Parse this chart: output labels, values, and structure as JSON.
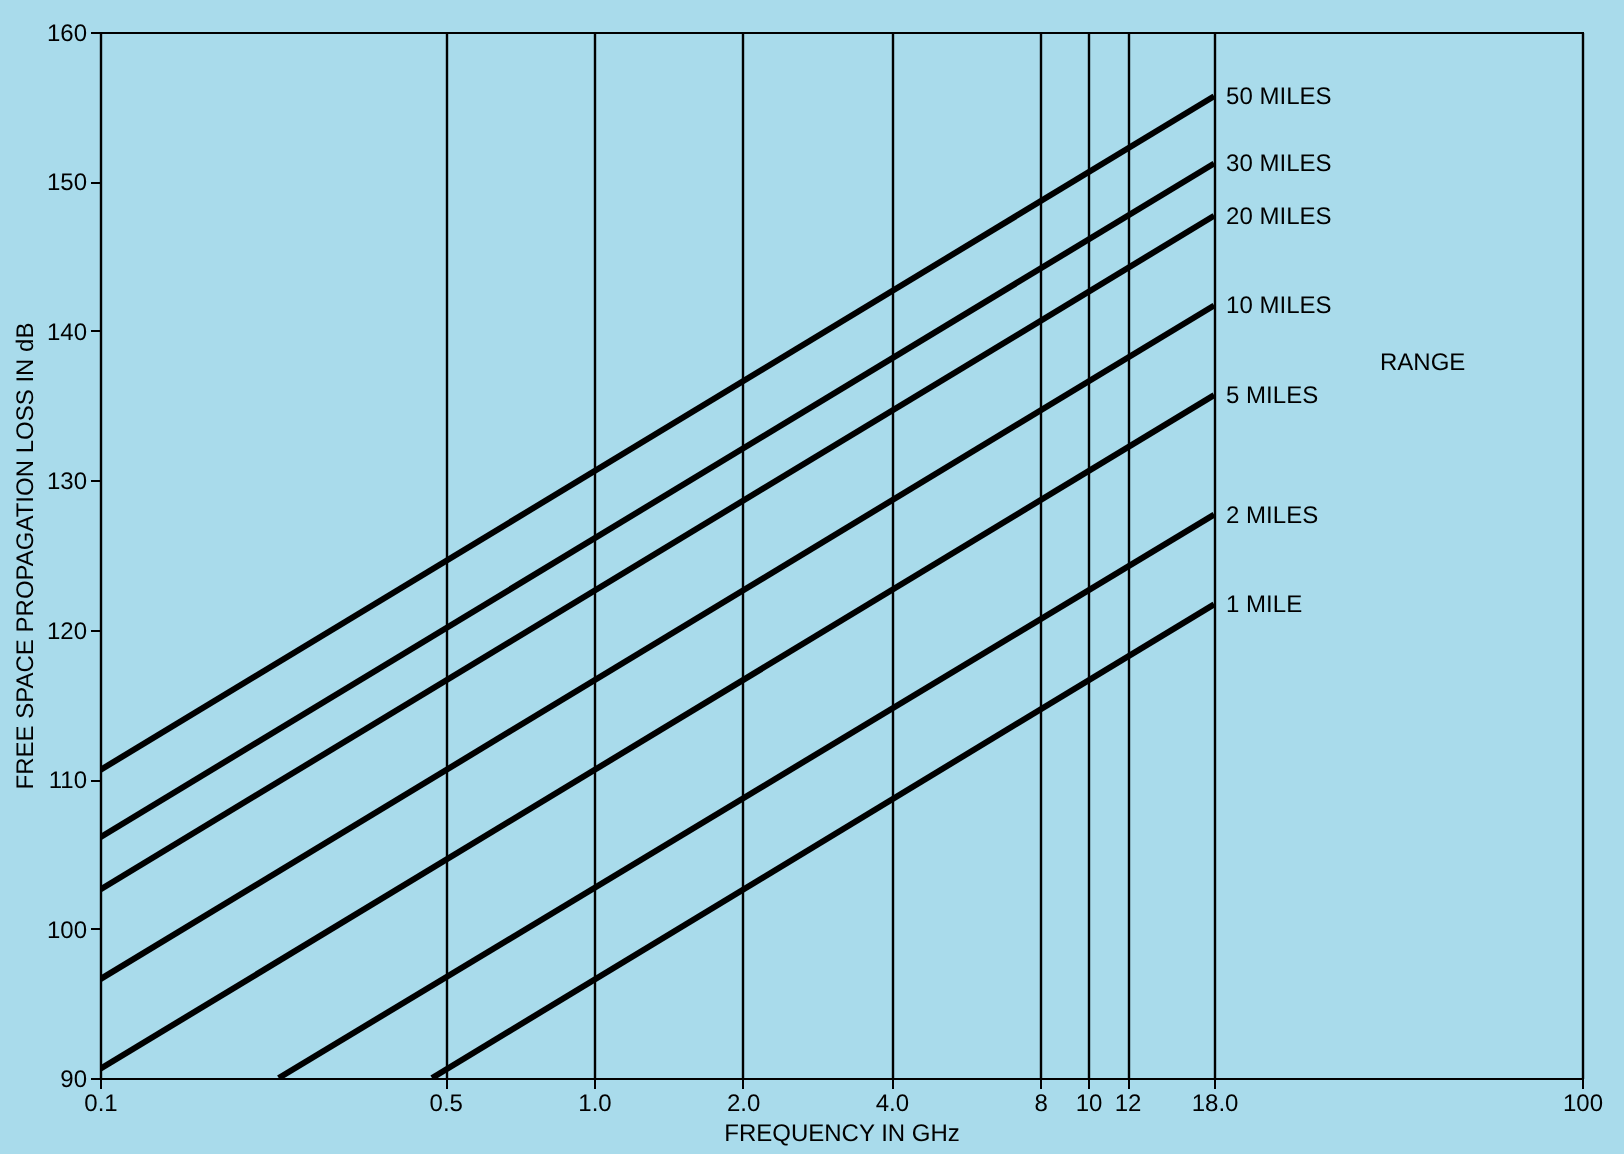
{
  "chart_data": {
    "type": "line",
    "xlabel": "FREQUENCY IN GHz",
    "ylabel": "FREE SPACE PROPAGATION LOSS IN dB",
    "log": "x",
    "xlim": [
      0.1,
      100
    ],
    "xticks": [
      0.1,
      0.5,
      {
        "value": 1,
        "label": "1.0"
      },
      {
        "value": 2,
        "label": "2.0"
      },
      {
        "value": 4,
        "label": "4.0"
      },
      8,
      10,
      12,
      {
        "value": 18,
        "label": "18.0"
      },
      100
    ],
    "ylim": [
      90,
      160
    ],
    "yticks": [
      90,
      100,
      110,
      120,
      130,
      140,
      150,
      160
    ],
    "grid": "x",
    "legend": false,
    "marker": "none",
    "line_style": "solid",
    "series": [
      {
        "name": "50 MILES",
        "color": "#000000",
        "x": [
          0.1,
          18
        ],
        "values": [
          110.6,
          155.7
        ]
      },
      {
        "name": "30 MILES",
        "color": "#000000",
        "x": [
          0.1,
          18
        ],
        "values": [
          106.1,
          151.2
        ]
      },
      {
        "name": "20 MILES",
        "color": "#000000",
        "x": [
          0.1,
          18
        ],
        "values": [
          102.6,
          147.7
        ]
      },
      {
        "name": "10 MILES",
        "color": "#000000",
        "x": [
          0.1,
          18
        ],
        "values": [
          96.6,
          141.7
        ]
      },
      {
        "name": "5 MILES",
        "color": "#000000",
        "x": [
          0.1,
          18
        ],
        "values": [
          90.6,
          135.7
        ]
      },
      {
        "name": "2 MILES",
        "color": "#000000",
        "x": [
          0.23,
          18
        ],
        "values": [
          90,
          127.7
        ]
      },
      {
        "name": "1 MILE",
        "color": "#000000",
        "x": [
          0.47,
          18
        ],
        "values": [
          90,
          121.7
        ]
      }
    ],
    "annotations": [
      "RANGE"
    ]
  }
}
